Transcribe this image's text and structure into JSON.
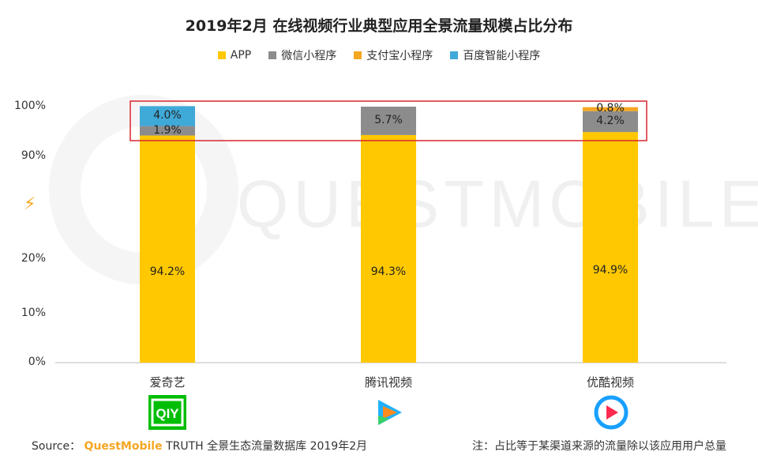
{
  "title": "2019年2月 在线视频行业典型应用全景流量规模占比分布",
  "legend": [
    {
      "label": "APP",
      "color": "#ffc800"
    },
    {
      "label": "微信小程序",
      "color": "#8c8c8c"
    },
    {
      "label": "支付宝小程序",
      "color": "#f5a623"
    },
    {
      "label": "百度智能小程序",
      "color": "#3fa9d8"
    }
  ],
  "axis_break_icon": "lightning-break-icon",
  "watermark": "QUESTMOBILE",
  "footer": {
    "source_prefix": "Source：",
    "source_brand": "QuestMobile",
    "source_rest": "TRUTH 全景生态流量数据库 2019年2月",
    "note": "注：占比等于某渠道来源的流量除以该应用用户总量"
  },
  "chart_data": {
    "type": "bar",
    "stacked": true,
    "broken_axis": true,
    "categories": [
      "爱奇艺",
      "腾讯视频",
      "优酷视频"
    ],
    "category_icons": [
      "iqiyi-logo-icon",
      "tencent-video-logo-icon",
      "youku-logo-icon"
    ],
    "y_ticks": [
      "0%",
      "10%",
      "20%",
      "90%",
      "100%"
    ],
    "ylim": [
      0,
      100
    ],
    "series": [
      {
        "name": "APP",
        "color": "#ffc800",
        "values": [
          94.2,
          94.3,
          94.9
        ],
        "labels": [
          "94.2%",
          "94.3%",
          "94.9%"
        ]
      },
      {
        "name": "微信小程序",
        "color": "#8c8c8c",
        "values": [
          1.9,
          5.7,
          4.2
        ],
        "labels": [
          "1.9%",
          "5.7%",
          "4.2%"
        ]
      },
      {
        "name": "支付宝小程序",
        "color": "#f5a623",
        "values": [
          0,
          0,
          0.8
        ],
        "labels": [
          "",
          "",
          "0.8%"
        ]
      },
      {
        "name": "百度智能小程序",
        "color": "#3fa9d8",
        "values": [
          4.0,
          0,
          0
        ],
        "labels": [
          "4.0%",
          "",
          ""
        ]
      }
    ],
    "highlight_box_color": "#d9272e",
    "grid": false,
    "legend_position": "top"
  }
}
